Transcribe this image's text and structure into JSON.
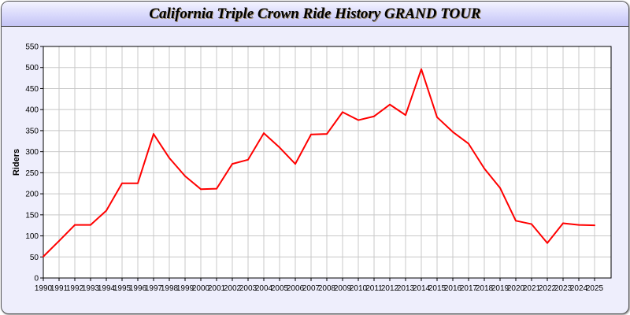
{
  "chart_data": {
    "type": "line",
    "title": "California Triple Crown Ride History GRAND TOUR",
    "xlabel": "",
    "ylabel": "Riders",
    "ylim": [
      0,
      550
    ],
    "yticks": [
      0,
      50,
      100,
      150,
      200,
      250,
      300,
      350,
      400,
      450,
      500,
      550
    ],
    "grid": true,
    "line_color": "#ff0000",
    "x": [
      1990,
      1991,
      1992,
      1993,
      1994,
      1995,
      1996,
      1997,
      1998,
      1999,
      2000,
      2001,
      2002,
      2003,
      2004,
      2005,
      2006,
      2007,
      2008,
      2009,
      2010,
      2011,
      2012,
      2013,
      2014,
      2015,
      2016,
      2017,
      2018,
      2019,
      2020,
      2021,
      2022,
      2023,
      2024,
      2025
    ],
    "values": [
      51,
      88,
      126,
      126,
      160,
      225,
      225,
      342,
      285,
      242,
      211,
      212,
      271,
      281,
      344,
      310,
      271,
      341,
      342,
      394,
      375,
      384,
      412,
      387,
      496,
      382,
      347,
      319,
      260,
      214,
      136,
      128,
      83,
      130,
      126,
      125
    ]
  }
}
